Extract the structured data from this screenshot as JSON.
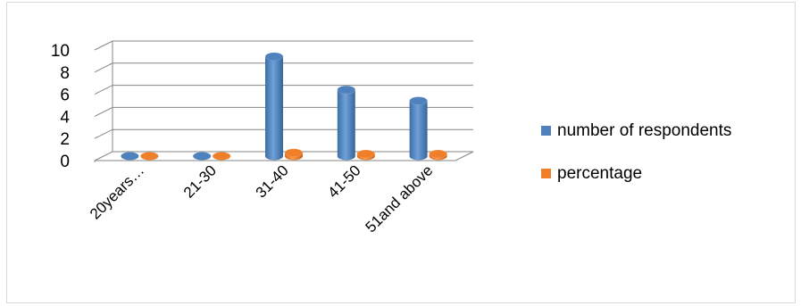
{
  "chart_data": {
    "type": "bar",
    "three_d": true,
    "categories": [
      "20years…",
      "21-30",
      "31-40",
      "41-50",
      "51and above"
    ],
    "series": [
      {
        "name": "number of respondents",
        "values": [
          0,
          0,
          9,
          6,
          5
        ],
        "color": "#4f81bd"
      },
      {
        "name": "percentage",
        "values": [
          0,
          0,
          0.3,
          0.2,
          0.2
        ],
        "color": "#f07f2a"
      }
    ],
    "ylim": [
      0,
      10
    ],
    "yticks": [
      "0",
      "2",
      "4",
      "6",
      "8",
      "10"
    ],
    "grid": true,
    "legend_position": "right"
  }
}
